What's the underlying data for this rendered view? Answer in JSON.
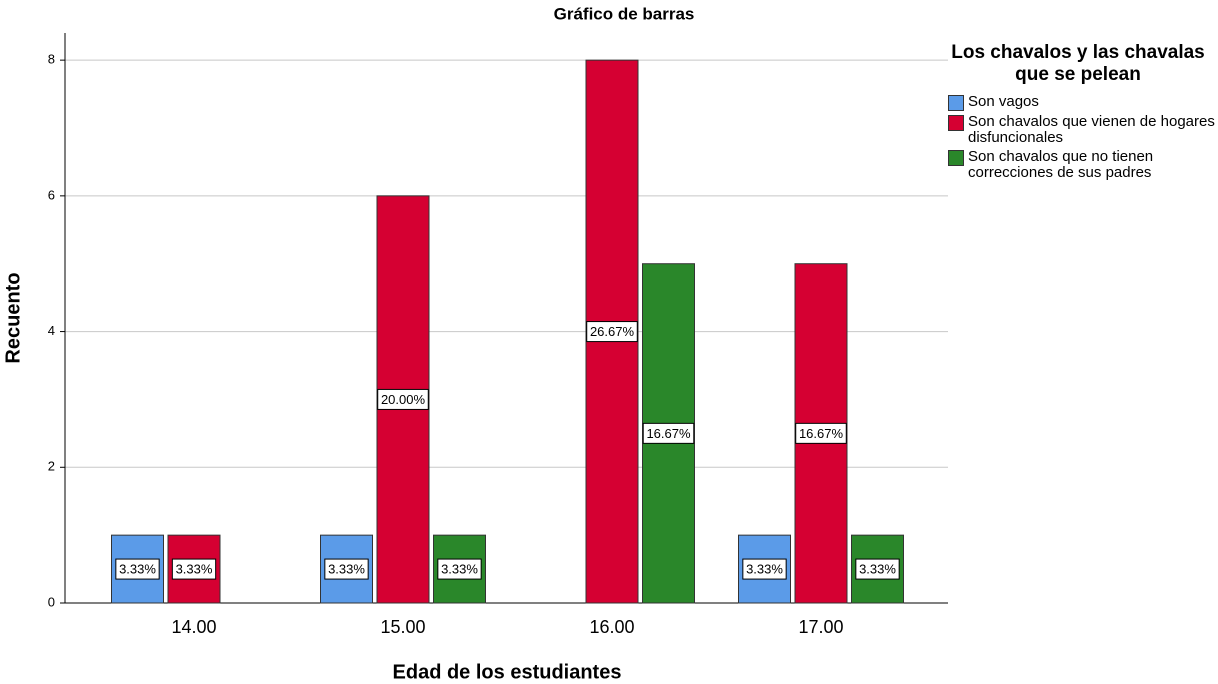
{
  "chart_data": {
    "type": "bar",
    "title": "Gráfico de barras",
    "x_label": "Edad de los estudiantes",
    "y_label": "Recuento",
    "categories": [
      "14.00",
      "15.00",
      "16.00",
      "17.00"
    ],
    "series": [
      {
        "name": "Son vagos",
        "color": "#5b9be8",
        "values": [
          1,
          1,
          null,
          1
        ],
        "percentages": [
          "3.33%",
          "3.33%",
          null,
          "3.33%"
        ]
      },
      {
        "name": "Son chavalos que vienen de hogares disfuncionales",
        "color": "#d50032",
        "values": [
          1,
          6,
          8,
          5
        ],
        "percentages": [
          "3.33%",
          "20.00%",
          "26.67%",
          "16.67%"
        ]
      },
      {
        "name": "Son chavalos que no tienen correcciones de sus padres",
        "color": "#2a872a",
        "values": [
          null,
          1,
          5,
          1
        ],
        "percentages": [
          null,
          "3.33%",
          "16.67%",
          "3.33%"
        ]
      }
    ],
    "legend_title": "Los chavalos y las chavalas que se pelean",
    "ylim": [
      0,
      8.4
    ],
    "yticks": [
      0,
      2,
      4,
      6,
      8
    ],
    "grid": true
  }
}
